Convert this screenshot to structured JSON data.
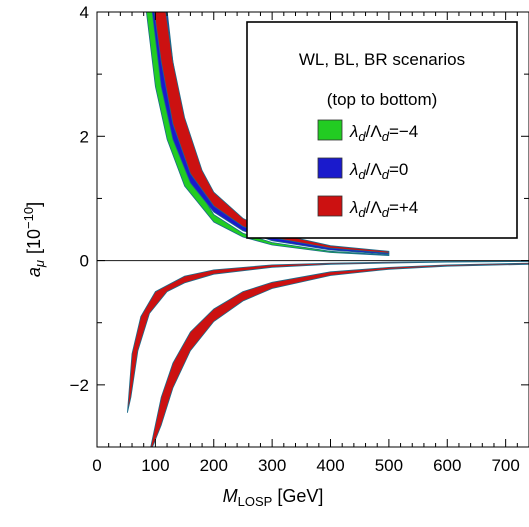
{
  "chart_data": {
    "type": "area",
    "xlabel": {
      "main": "M",
      "sub": "LOSP",
      "unit": " [GeV]"
    },
    "ylabel": {
      "main": "a",
      "sub": "μ",
      "unit": "[10",
      "exp": "−10",
      "close": "]"
    },
    "xlim": [
      0,
      740
    ],
    "ylim": [
      -3,
      4
    ],
    "x_ticks": [
      0,
      100,
      200,
      300,
      400,
      500,
      600,
      700
    ],
    "x_tick_labels": [
      "0",
      "100",
      "200",
      "300",
      "400",
      "500",
      "600",
      "700"
    ],
    "y_ticks": [
      -2,
      0,
      2,
      4
    ],
    "y_tick_labels": [
      "−2",
      "0",
      "2",
      "4"
    ],
    "legend": {
      "title_line1": "WL, BL, BR scenarios",
      "title_line2": "(top to bottom)",
      "entries": [
        {
          "text": "λd/Λd=−4",
          "sym": "λ",
          "sub": "d",
          "mid": "/Λ",
          "sub2": "d",
          "rest": "=−4",
          "color": "#22cc22"
        },
        {
          "text": "λd/Λd=0",
          "sym": "λ",
          "sub": "d",
          "mid": "/Λ",
          "sub2": "d",
          "rest": "=0",
          "color": "#1a1acc"
        },
        {
          "text": "λd/Λd=+4",
          "sym": "λ",
          "sub": "d",
          "mid": "/Λ",
          "sub2": "d",
          "rest": "=+4",
          "color": "#cc1111"
        }
      ]
    },
    "colors": {
      "green": "#22cc22",
      "blue": "#1a1acc",
      "red": "#cc1111",
      "edge": "#1a6b8a"
    },
    "series": [
      {
        "scenario": "WL",
        "x_range": [
          82,
          500
        ],
        "bands": [
          {
            "color": "green",
            "points": [
              [
                82,
                4.2
              ],
              [
                100,
                2.8
              ],
              [
                120,
                1.95
              ],
              [
                150,
                1.2
              ],
              [
                200,
                0.62
              ],
              [
                250,
                0.38
              ],
              [
                300,
                0.25
              ],
              [
                400,
                0.13
              ],
              [
                500,
                0.08
              ]
            ],
            "lower": [
              [
                100,
                4.2
              ],
              [
                120,
                2.6
              ],
              [
                150,
                1.5
              ],
              [
                200,
                0.74
              ],
              [
                250,
                0.44
              ],
              [
                300,
                0.29
              ],
              [
                400,
                0.15
              ],
              [
                500,
                0.09
              ]
            ]
          },
          {
            "color": "blue",
            "points": [
              [
                92,
                4.2
              ],
              [
                110,
                2.8
              ],
              [
                130,
                1.95
              ],
              [
                160,
                1.25
              ],
              [
                200,
                0.78
              ],
              [
                250,
                0.48
              ],
              [
                300,
                0.32
              ],
              [
                400,
                0.17
              ],
              [
                500,
                0.1
              ]
            ],
            "lower": [
              [
                118,
                4.2
              ],
              [
                130,
                3.2
              ],
              [
                150,
                2.1
              ],
              [
                180,
                1.3
              ],
              [
                200,
                1.0
              ],
              [
                250,
                0.6
              ],
              [
                300,
                0.4
              ],
              [
                400,
                0.21
              ],
              [
                500,
                0.12
              ]
            ]
          },
          {
            "color": "red",
            "points": [
              [
                95,
                4.2
              ],
              [
                110,
                3.2
              ],
              [
                130,
                2.2
              ],
              [
                160,
                1.4
              ],
              [
                200,
                0.88
              ],
              [
                250,
                0.55
              ],
              [
                300,
                0.37
              ],
              [
                400,
                0.2
              ],
              [
                500,
                0.12
              ]
            ],
            "lower": [
              [
                115,
                4.2
              ],
              [
                130,
                3.2
              ],
              [
                150,
                2.3
              ],
              [
                180,
                1.45
              ],
              [
                200,
                1.1
              ],
              [
                250,
                0.68
              ],
              [
                300,
                0.45
              ],
              [
                400,
                0.24
              ],
              [
                500,
                0.15
              ]
            ]
          }
        ]
      },
      {
        "scenario": "BL",
        "x_range": [
          50,
          740
        ],
        "bands": [
          {
            "color": "red",
            "points": [
              [
                52,
                -2.45
              ],
              [
                60,
                -1.5
              ],
              [
                75,
                -0.9
              ],
              [
                100,
                -0.5
              ],
              [
                150,
                -0.25
              ],
              [
                200,
                -0.15
              ],
              [
                300,
                -0.07
              ],
              [
                400,
                -0.04
              ],
              [
                500,
                -0.025
              ],
              [
                600,
                -0.015
              ],
              [
                740,
                -0.01
              ]
            ],
            "lower": [
              [
                52,
                -2.45
              ],
              [
                58,
                -2.2
              ],
              [
                70,
                -1.45
              ],
              [
                90,
                -0.85
              ],
              [
                120,
                -0.5
              ],
              [
                150,
                -0.36
              ],
              [
                200,
                -0.22
              ],
              [
                300,
                -0.11
              ],
              [
                400,
                -0.06
              ],
              [
                500,
                -0.04
              ],
              [
                600,
                -0.025
              ],
              [
                740,
                -0.015
              ]
            ]
          }
        ]
      },
      {
        "scenario": "BR",
        "x_range": [
          88,
          740
        ],
        "bands": [
          {
            "color": "red",
            "points": [
              [
                92,
                -3.0
              ],
              [
                110,
                -2.2
              ],
              [
                130,
                -1.65
              ],
              [
                160,
                -1.15
              ],
              [
                200,
                -0.78
              ],
              [
                250,
                -0.5
              ],
              [
                300,
                -0.35
              ],
              [
                400,
                -0.18
              ],
              [
                500,
                -0.11
              ],
              [
                600,
                -0.07
              ],
              [
                740,
                -0.04
              ]
            ],
            "lower": [
              [
                88,
                -3.0
              ],
              [
                95,
                -3.0
              ],
              [
                110,
                -2.65
              ],
              [
                130,
                -2.05
              ],
              [
                160,
                -1.45
              ],
              [
                200,
                -0.98
              ],
              [
                250,
                -0.65
              ],
              [
                300,
                -0.45
              ],
              [
                400,
                -0.24
              ],
              [
                500,
                -0.14
              ],
              [
                600,
                -0.09
              ],
              [
                740,
                -0.06
              ]
            ]
          }
        ]
      }
    ]
  }
}
